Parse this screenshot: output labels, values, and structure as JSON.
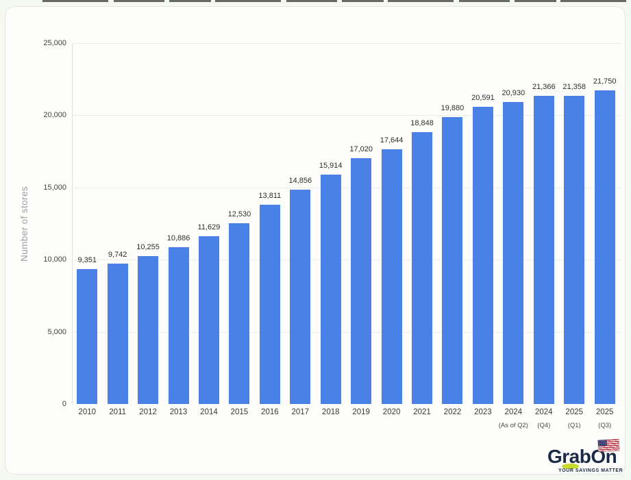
{
  "chart_data": {
    "type": "bar",
    "title": "",
    "xlabel": "",
    "ylabel": "Number of stores",
    "ylim": [
      0,
      25000
    ],
    "yticks": [
      0,
      5000,
      10000,
      15000,
      20000,
      25000
    ],
    "ytick_labels": [
      "0",
      "5,000",
      "10,000",
      "15,000",
      "20,000",
      "25,000"
    ],
    "grid": true,
    "legend": "none",
    "bar_color": "#4a81e6",
    "categories": [
      "2010",
      "2011",
      "2012",
      "2013",
      "2014",
      "2015",
      "2016",
      "2017",
      "2018",
      "2019",
      "2020",
      "2021",
      "2022",
      "2023",
      "2024",
      "2024",
      "2025",
      "2025"
    ],
    "category_sublabels": [
      "",
      "",
      "",
      "",
      "",
      "",
      "",
      "",
      "",
      "",
      "",
      "",
      "",
      "",
      "(As of Q2)",
      "(Q4)",
      "(Q1)",
      "(Q3)"
    ],
    "values": [
      9351,
      9742,
      10255,
      10886,
      11629,
      12530,
      13811,
      14856,
      15914,
      17020,
      17644,
      18848,
      19880,
      20591,
      20930,
      21366,
      21358,
      21750
    ],
    "value_labels": [
      "9,351",
      "9,742",
      "10,255",
      "10,886",
      "11,629",
      "12,530",
      "13,811",
      "14,856",
      "15,914",
      "17,020",
      "17,644",
      "18,848",
      "19,880",
      "20,591",
      "20,930",
      "21,366",
      "21,358",
      "21,750"
    ]
  },
  "branding": {
    "logo_text": "GrabOn",
    "tagline": "YOUR SAVINGS MATTER",
    "logo_color": "#1c2a46",
    "accent_color": "#c8db2d",
    "flag": "us-flag"
  }
}
